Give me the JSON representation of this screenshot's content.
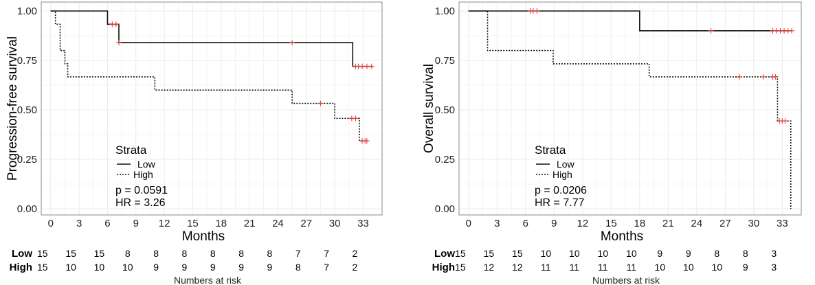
{
  "chart_data": [
    {
      "type": "line",
      "subtype": "kaplan-meier",
      "ylabel": "Progression-free survival",
      "xlabel": "Months",
      "xlim": [
        -1,
        35
      ],
      "ylim": [
        0,
        1
      ],
      "x_ticks": [
        0,
        3,
        6,
        9,
        12,
        15,
        18,
        21,
        24,
        27,
        30,
        33
      ],
      "y_ticks": [
        "0.00",
        "0.25",
        "0.50",
        "0.75",
        "1.00"
      ],
      "legend": {
        "title": "Strata",
        "position": "bottom-left"
      },
      "series": [
        {
          "name": "Low",
          "style": "solid",
          "steps": [
            [
              0,
              1.0
            ],
            [
              6.0,
              0.933
            ],
            [
              7.2,
              0.84
            ],
            [
              31.9,
              0.72
            ],
            [
              34.0,
              0.72
            ]
          ],
          "censors": [
            [
              6.5,
              0.933
            ],
            [
              6.9,
              0.933
            ],
            [
              7.2,
              0.84
            ],
            [
              25.5,
              0.84
            ],
            [
              32.2,
              0.72
            ],
            [
              32.5,
              0.72
            ],
            [
              32.9,
              0.72
            ],
            [
              33.4,
              0.72
            ],
            [
              33.9,
              0.72
            ]
          ]
        },
        {
          "name": "High",
          "style": "dotted",
          "steps": [
            [
              0,
              1.0
            ],
            [
              0.5,
              0.933
            ],
            [
              1.0,
              0.8
            ],
            [
              1.5,
              0.733
            ],
            [
              1.8,
              0.667
            ],
            [
              11.0,
              0.6
            ],
            [
              25.5,
              0.533
            ],
            [
              30.0,
              0.457
            ],
            [
              32.6,
              0.343
            ],
            [
              33.5,
              0.343
            ]
          ],
          "censors": [
            [
              28.5,
              0.533
            ],
            [
              31.8,
              0.457
            ],
            [
              32.2,
              0.457
            ],
            [
              32.9,
              0.343
            ],
            [
              33.2,
              0.343
            ],
            [
              33.4,
              0.343
            ]
          ]
        }
      ],
      "stats": {
        "p": "p = 0.0591",
        "hr": "HR = 3.26"
      },
      "risk_table": {
        "title": "Numbers at risk",
        "rows": [
          {
            "name": "Low",
            "values": [
              "15",
              "15",
              "15",
              "8",
              "8",
              "8",
              "8",
              "8",
              "8",
              "7",
              "7",
              "2"
            ]
          },
          {
            "name": "High",
            "values": [
              "15",
              "10",
              "10",
              "10",
              "9",
              "9",
              "9",
              "9",
              "9",
              "8",
              "7",
              "2"
            ]
          }
        ]
      }
    },
    {
      "type": "line",
      "subtype": "kaplan-meier",
      "ylabel": "Overall survival",
      "xlabel": "Months",
      "xlim": [
        -1,
        35
      ],
      "ylim": [
        0,
        1
      ],
      "x_ticks": [
        0,
        3,
        6,
        9,
        12,
        15,
        18,
        21,
        24,
        27,
        30,
        33
      ],
      "y_ticks": [
        "0.00",
        "0.25",
        "0.50",
        "0.75",
        "1.00"
      ],
      "legend": {
        "title": "Strata",
        "position": "bottom-left"
      },
      "series": [
        {
          "name": "Low",
          "style": "solid",
          "steps": [
            [
              0,
              1.0
            ],
            [
              18.0,
              0.9
            ],
            [
              34.0,
              0.9
            ]
          ],
          "censors": [
            [
              6.5,
              1.0
            ],
            [
              6.8,
              1.0
            ],
            [
              7.2,
              1.0
            ],
            [
              25.5,
              0.9
            ],
            [
              32.0,
              0.9
            ],
            [
              32.4,
              0.9
            ],
            [
              32.8,
              0.9
            ],
            [
              33.2,
              0.9
            ],
            [
              33.6,
              0.9
            ],
            [
              34.0,
              0.9
            ]
          ]
        },
        {
          "name": "High",
          "style": "dotted",
          "steps": [
            [
              0,
              1.0
            ],
            [
              2.0,
              0.8
            ],
            [
              8.9,
              0.733
            ],
            [
              19.0,
              0.667
            ],
            [
              32.5,
              0.444
            ],
            [
              33.9,
              0.0
            ]
          ],
          "censors": [
            [
              28.5,
              0.667
            ],
            [
              31.0,
              0.667
            ],
            [
              32.0,
              0.667
            ],
            [
              32.3,
              0.667
            ],
            [
              32.7,
              0.444
            ],
            [
              33.0,
              0.444
            ],
            [
              33.3,
              0.444
            ]
          ]
        }
      ],
      "stats": {
        "p": "p = 0.0206",
        "hr": "HR = 7.77"
      },
      "risk_table": {
        "title": "Numbers at risk",
        "rows": [
          {
            "name": "Low",
            "values": [
              "15",
              "15",
              "15",
              "10",
              "10",
              "10",
              "10",
              "9",
              "9",
              "8",
              "8",
              "3"
            ]
          },
          {
            "name": "High",
            "values": [
              "15",
              "12",
              "12",
              "11",
              "11",
              "11",
              "11",
              "10",
              "10",
              "10",
              "9",
              "3"
            ]
          }
        ]
      }
    }
  ],
  "colors": {
    "panel_border": "#8a8a8a",
    "grid": "#ebebeb",
    "line": "#111111",
    "censor": "#e8403a",
    "text": "#000000"
  }
}
